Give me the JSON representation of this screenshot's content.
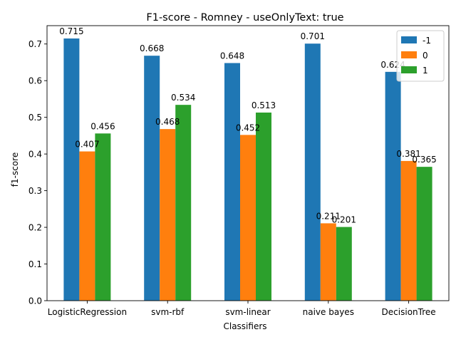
{
  "chart_data": {
    "type": "bar",
    "title": "F1-score - Romney - useOnlyText: true",
    "xlabel": "Classifiers",
    "ylabel": "f1-score",
    "ylim": [
      0,
      0.75
    ],
    "yticks": [
      "0.0",
      "0.1",
      "0.2",
      "0.3",
      "0.4",
      "0.5",
      "0.6",
      "0.7"
    ],
    "categories": [
      "LogisticRegression",
      "svm-rbf",
      "svm-linear",
      "naive bayes",
      "DecisionTree"
    ],
    "series": [
      {
        "name": "-1",
        "color": "#1f77b4",
        "values": [
          0.715,
          0.668,
          0.648,
          0.701,
          0.624
        ]
      },
      {
        "name": "0",
        "color": "#ff7f0e",
        "values": [
          0.407,
          0.468,
          0.452,
          0.211,
          0.381
        ]
      },
      {
        "name": "1",
        "color": "#2ca02c",
        "values": [
          0.456,
          0.534,
          0.513,
          0.201,
          0.365
        ]
      }
    ],
    "legend_position": "top-right",
    "grid": false
  }
}
